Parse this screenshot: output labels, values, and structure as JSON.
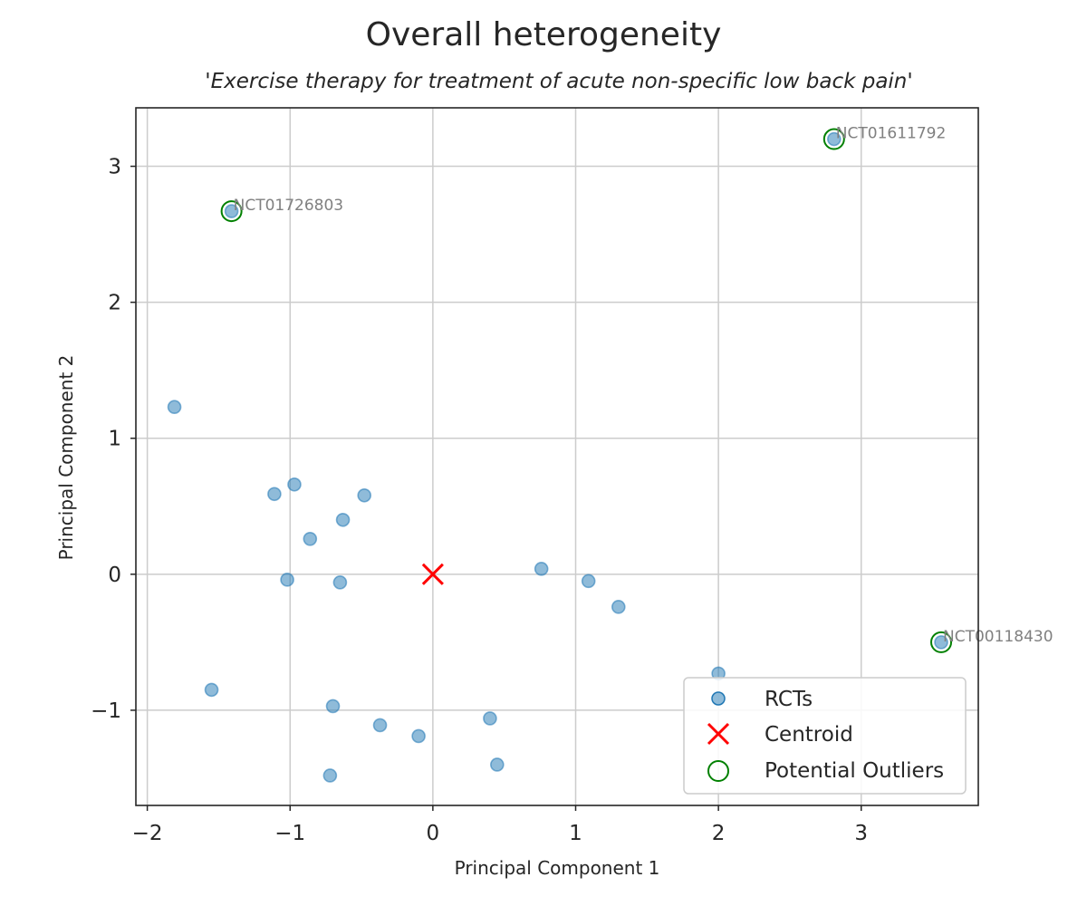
{
  "chart_data": {
    "type": "scatter",
    "title": "Overall heterogeneity",
    "subtitle": "'Exercise therapy for treatment of acute non-specific low back pain'",
    "xlabel": "Principal Component 1",
    "ylabel": "Principal Component 2",
    "xlim": [
      -2.08,
      3.82
    ],
    "ylim": [
      -1.7,
      3.43
    ],
    "xticks": [
      -2,
      -1,
      0,
      1,
      2,
      3
    ],
    "yticks": [
      -1,
      0,
      1,
      2,
      3
    ],
    "xtick_labels": [
      "−2",
      "−1",
      "0",
      "1",
      "2",
      "3"
    ],
    "ytick_labels": [
      "−1",
      "0",
      "1",
      "2",
      "3"
    ],
    "grid": true,
    "legend_position": "lower-right",
    "series": [
      {
        "name": "RCTs",
        "color": "#1f77b4",
        "points": [
          {
            "x": -1.81,
            "y": 1.23
          },
          {
            "x": -1.41,
            "y": 2.67
          },
          {
            "x": 2.81,
            "y": 3.2
          },
          {
            "x": -1.11,
            "y": 0.59
          },
          {
            "x": -0.97,
            "y": 0.66
          },
          {
            "x": -0.48,
            "y": 0.58
          },
          {
            "x": -0.63,
            "y": 0.4
          },
          {
            "x": -0.86,
            "y": 0.26
          },
          {
            "x": -1.02,
            "y": -0.04
          },
          {
            "x": -0.65,
            "y": -0.06
          },
          {
            "x": 0.76,
            "y": 0.04
          },
          {
            "x": 1.09,
            "y": -0.05
          },
          {
            "x": 1.3,
            "y": -0.24
          },
          {
            "x": 3.56,
            "y": -0.5
          },
          {
            "x": 2.0,
            "y": -0.73
          },
          {
            "x": -1.55,
            "y": -0.85
          },
          {
            "x": -0.7,
            "y": -0.97
          },
          {
            "x": -0.37,
            "y": -1.11
          },
          {
            "x": -0.1,
            "y": -1.19
          },
          {
            "x": 0.4,
            "y": -1.06
          },
          {
            "x": 0.45,
            "y": -1.4
          },
          {
            "x": -0.72,
            "y": -1.48
          }
        ]
      },
      {
        "name": "Centroid",
        "color": "#ff0000",
        "points": [
          {
            "x": 0,
            "y": 0
          }
        ]
      },
      {
        "name": "Potential Outliers",
        "color": "#008000",
        "points": [
          {
            "x": -1.41,
            "y": 2.67,
            "label": "NCT01726803"
          },
          {
            "x": 2.81,
            "y": 3.2,
            "label": "NCT01611792"
          },
          {
            "x": 3.56,
            "y": -0.5,
            "label": "NCT00118430"
          }
        ]
      }
    ],
    "legend": [
      {
        "label": "RCTs"
      },
      {
        "label": "Centroid"
      },
      {
        "label": "Potential Outliers"
      }
    ]
  }
}
